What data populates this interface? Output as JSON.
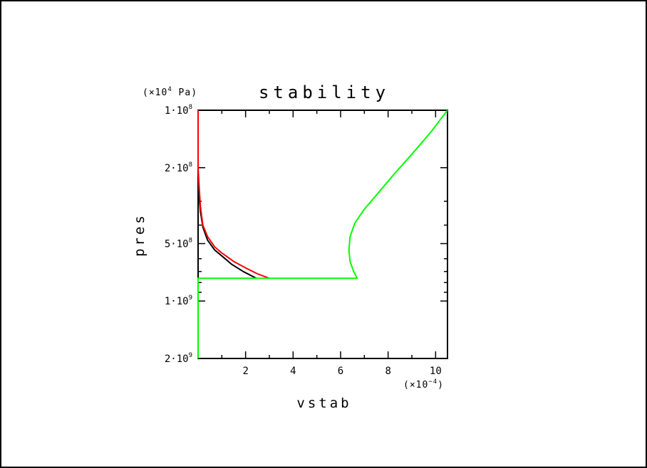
{
  "chart_data": {
    "type": "line",
    "title": "stability",
    "xlabel": "vstab",
    "ylabel": "pres",
    "x_unit_label": "(×10",
    "x_unit_exp": "−4",
    "x_unit_close": ")",
    "y_unit_label": "(×10",
    "y_unit_exp": "4",
    "y_unit_close": " Pa)",
    "x_multiplier": 0.0001,
    "xlim": [
      0,
      10.5
    ],
    "ylim": [
      100000000,
      2000000000
    ],
    "y_scale": "log",
    "y_inverted": true,
    "grid": false,
    "x_ticks": [
      {
        "value": 2,
        "label": "2"
      },
      {
        "value": 4,
        "label": "4"
      },
      {
        "value": 6,
        "label": "6"
      },
      {
        "value": 8,
        "label": "8"
      },
      {
        "value": 10,
        "label": "10"
      }
    ],
    "y_ticks": [
      {
        "value": 100000000,
        "label": "1·10",
        "exp": "8"
      },
      {
        "value": 200000000,
        "label": "2·10",
        "exp": "8"
      },
      {
        "value": 500000000,
        "label": "5·10",
        "exp": "8"
      },
      {
        "value": 1000000000,
        "label": "1·10",
        "exp": "9"
      },
      {
        "value": 2000000000,
        "label": "2·10",
        "exp": "9"
      }
    ],
    "series": [
      {
        "color": "#000000",
        "x": [
          0.0,
          0.0,
          0.05,
          0.1,
          0.2,
          0.4,
          0.7,
          1.0,
          1.4,
          1.9,
          2.45
        ],
        "y": [
          200000000,
          220000000,
          290000000,
          340000000,
          410000000,
          480000000,
          540000000,
          580000000,
          640000000,
          700000000,
          760000000
        ]
      },
      {
        "color": "#ff0000",
        "x": [
          0.0,
          0.0,
          0.05,
          0.1,
          0.2,
          0.4,
          0.7,
          1.0,
          1.5,
          2.0,
          2.5,
          3.0
        ],
        "y": [
          100000000,
          200000000,
          260000000,
          320000000,
          400000000,
          460000000,
          520000000,
          560000000,
          620000000,
          670000000,
          720000000,
          760000000
        ]
      },
      {
        "color": "#00ff00",
        "x": [
          10.5,
          9.8,
          9.0,
          8.2,
          7.6,
          7.0,
          6.6,
          6.4,
          6.35,
          6.4,
          6.55,
          6.7,
          0.0,
          0.0
        ],
        "y": [
          100000000,
          130000000,
          170000000,
          220000000,
          270000000,
          330000000,
          390000000,
          460000000,
          540000000,
          620000000,
          700000000,
          760000000,
          760000000,
          2000000000
        ]
      }
    ]
  }
}
